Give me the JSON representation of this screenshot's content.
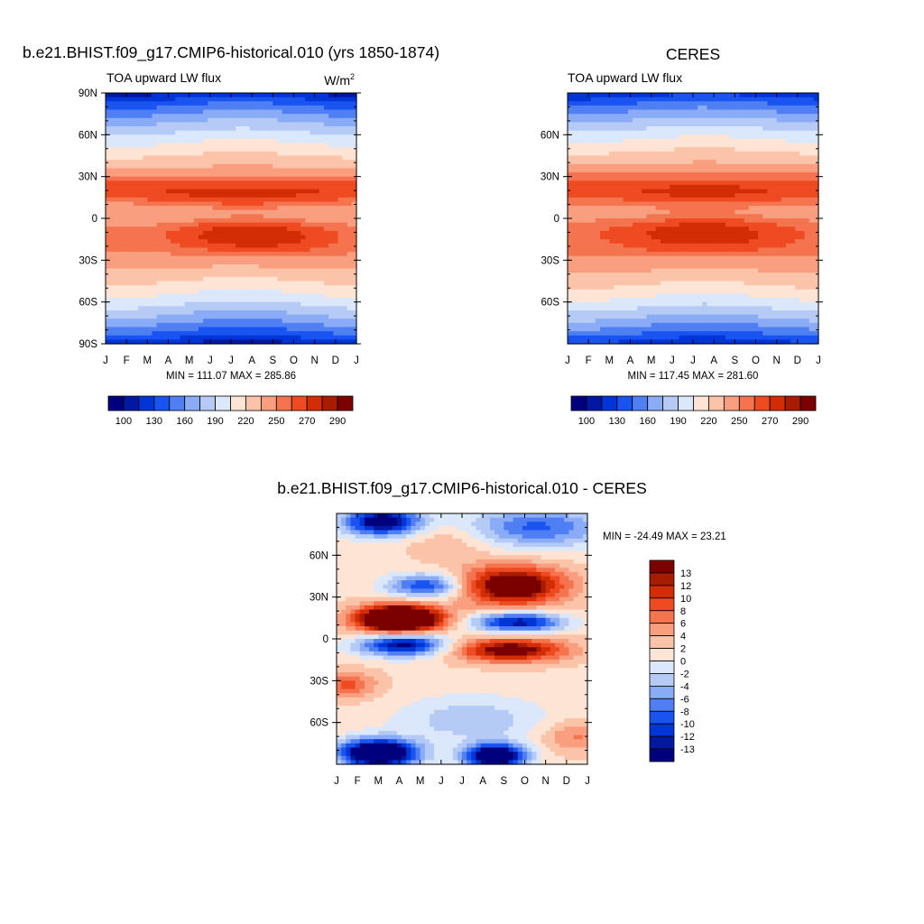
{
  "colors": {
    "abs_palette": [
      "#00007f",
      "#0019a0",
      "#0035d8",
      "#1a54f0",
      "#4f7ff3",
      "#8aabf5",
      "#b5cbf6",
      "#dbe7fb",
      "#fde4d4",
      "#fbc4a9",
      "#f99e7e",
      "#f4744f",
      "#ee4b23",
      "#d22d05",
      "#a81c00",
      "#7b0000"
    ],
    "diff_palette": [
      "#00007f",
      "#0019a0",
      "#0035d8",
      "#1a54f0",
      "#4f7ff3",
      "#8aabf5",
      "#b5cbf6",
      "#dbe7fb",
      "#fde4d4",
      "#fbc4a9",
      "#f99e7e",
      "#f4744f",
      "#ee4b23",
      "#d22d05",
      "#a81c00",
      "#7b0000"
    ]
  },
  "chart_data": [
    {
      "id": "model",
      "type": "heatmap",
      "title": "b.e21.BHIST.f09_g17.CMIP6-historical.010 (yrs 1850-1874)",
      "left_label": "TOA upward LW flux",
      "units_prefix": "W/m",
      "units_sup": "2",
      "x_ticks": [
        "J",
        "F",
        "M",
        "A",
        "M",
        "J",
        "J",
        "A",
        "S",
        "O",
        "N",
        "D",
        "J"
      ],
      "y_ticks": [
        "90N",
        "60N",
        "30N",
        "0",
        "30S",
        "60S",
        "90S"
      ],
      "y_tick_values": [
        90,
        60,
        30,
        0,
        -30,
        -60,
        -90
      ],
      "ylim": [
        -90,
        90
      ],
      "stats_text": "MIN = 111.07 MAX = 285.86",
      "colorbar_labels": [
        "100",
        "130",
        "160",
        "190",
        "220",
        "250",
        "270",
        "290"
      ],
      "levels": [
        100,
        115,
        130,
        145,
        160,
        175,
        190,
        205,
        220,
        235,
        250,
        260,
        270,
        280,
        290
      ]
    },
    {
      "id": "obs",
      "type": "heatmap",
      "title": "CERES",
      "left_label": "TOA upward LW flux",
      "x_ticks": [
        "J",
        "F",
        "M",
        "A",
        "M",
        "J",
        "J",
        "A",
        "S",
        "O",
        "N",
        "D",
        "J"
      ],
      "y_ticks": [
        "60N",
        "30N",
        "0",
        "30S",
        "60S"
      ],
      "y_tick_values": [
        60,
        30,
        0,
        -30,
        -60
      ],
      "ylim": [
        -90,
        90
      ],
      "stats_text": "MIN = 117.45 MAX = 281.60",
      "colorbar_labels": [
        "100",
        "130",
        "160",
        "190",
        "220",
        "250",
        "270",
        "290"
      ],
      "levels": [
        100,
        115,
        130,
        145,
        160,
        175,
        190,
        205,
        220,
        235,
        250,
        260,
        270,
        280,
        290
      ]
    },
    {
      "id": "diff",
      "type": "heatmap",
      "title": "b.e21.BHIST.f09_g17.CMIP6-historical.010 - CERES",
      "x_ticks": [
        "J",
        "F",
        "M",
        "A",
        "M",
        "J",
        "J",
        "A",
        "S",
        "O",
        "N",
        "D",
        "J"
      ],
      "y_ticks": [
        "60N",
        "30N",
        "0",
        "30S",
        "60S"
      ],
      "y_tick_values": [
        60,
        30,
        0,
        -30,
        -60
      ],
      "ylim": [
        -90,
        90
      ],
      "stats_text": "MIN = -24.49 MAX =  23.21",
      "colorbar_labels": [
        "13",
        "12",
        "10",
        "8",
        "6",
        "4",
        "2",
        "0",
        "-2",
        "-4",
        "-6",
        "-8",
        "-10",
        "-12",
        "-13"
      ],
      "levels": [
        -13,
        -12,
        -10,
        -8,
        -6,
        -4,
        -2,
        0,
        2,
        4,
        6,
        8,
        10,
        12,
        13
      ]
    }
  ]
}
